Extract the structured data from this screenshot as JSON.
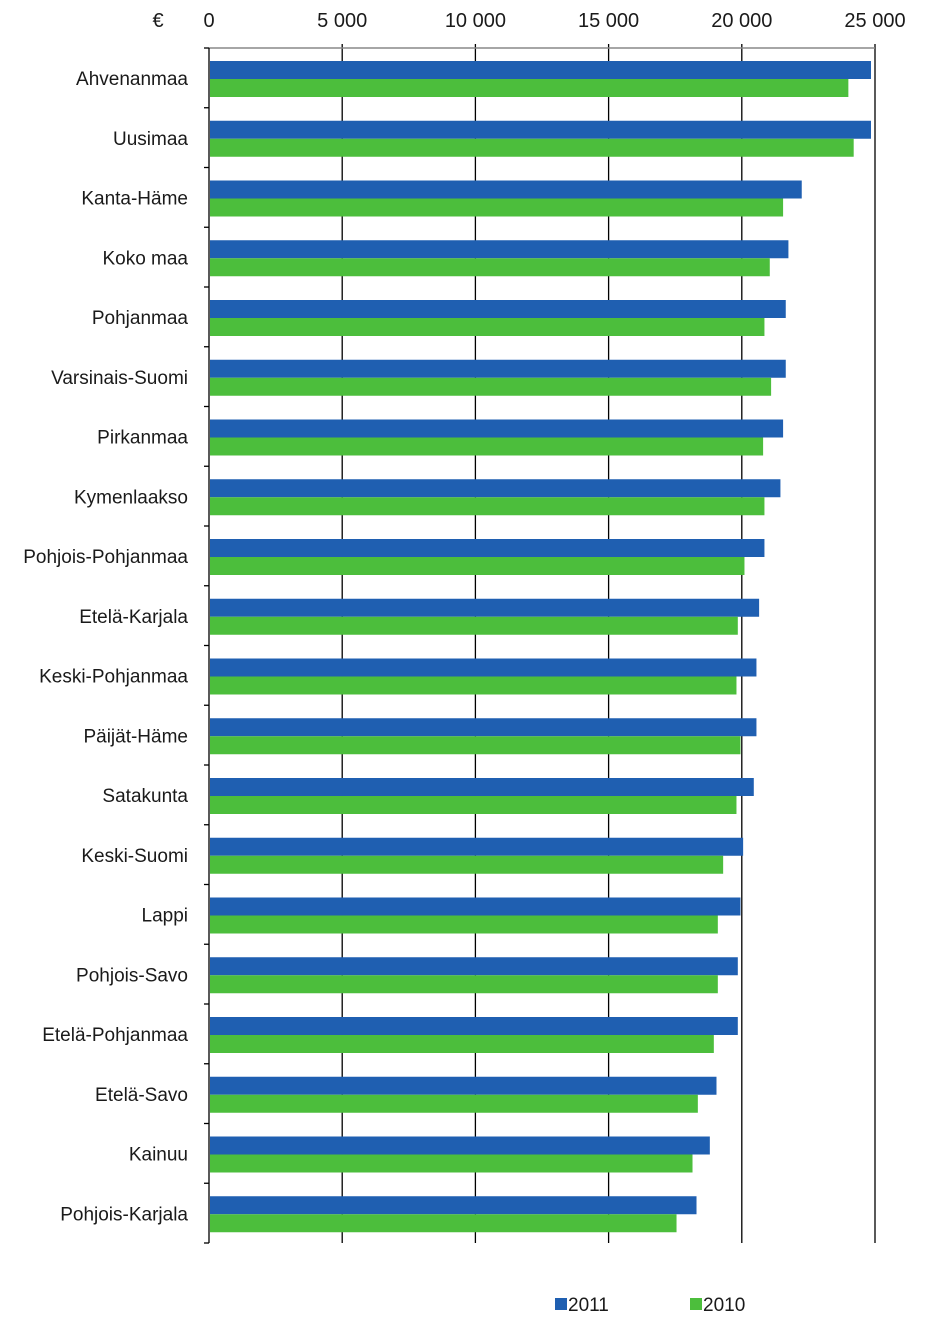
{
  "chart_data": {
    "type": "bar",
    "orientation": "horizontal",
    "unit": "€",
    "xlim": [
      0,
      25000
    ],
    "xticks": [
      0,
      5000,
      10000,
      15000,
      20000,
      25000
    ],
    "xtick_labels": [
      "0",
      "5 000",
      "10 000",
      "15 000",
      "20 000",
      "25 000"
    ],
    "x_axis_position": "top",
    "grid": "vertical",
    "legend_placement": "bottom",
    "categories": [
      "Ahvenanmaa",
      "Uusimaa",
      "Kanta-Häme",
      "Koko maa",
      "Pohjanmaa",
      "Varsinais-Suomi",
      "Pirkanmaa",
      "Kymenlaakso",
      "Pohjois-Pohjanmaa",
      "Etelä-Karjala",
      "Keski-Pohjanmaa",
      "Päijät-Häme",
      "Satakunta",
      "Keski-Suomi",
      "Lappi",
      "Pohjois-Savo",
      "Etelä-Pohjanmaa",
      "Etelä-Savo",
      "Kainuu",
      "Pohjois-Karjala"
    ],
    "series": [
      {
        "name": "2011",
        "color": "#1f5fb1",
        "values": [
          24850,
          24850,
          22250,
          21750,
          21650,
          21650,
          21550,
          21450,
          20850,
          20650,
          20550,
          20550,
          20450,
          20050,
          19950,
          19850,
          19850,
          19050,
          18800,
          18300
        ]
      },
      {
        "name": "2010",
        "color": "#4cbe3c",
        "values": [
          24000,
          24200,
          21550,
          21050,
          20850,
          21100,
          20800,
          20850,
          20100,
          19850,
          19800,
          19950,
          19800,
          19300,
          19100,
          19100,
          18950,
          18350,
          18150,
          17550
        ]
      }
    ]
  }
}
